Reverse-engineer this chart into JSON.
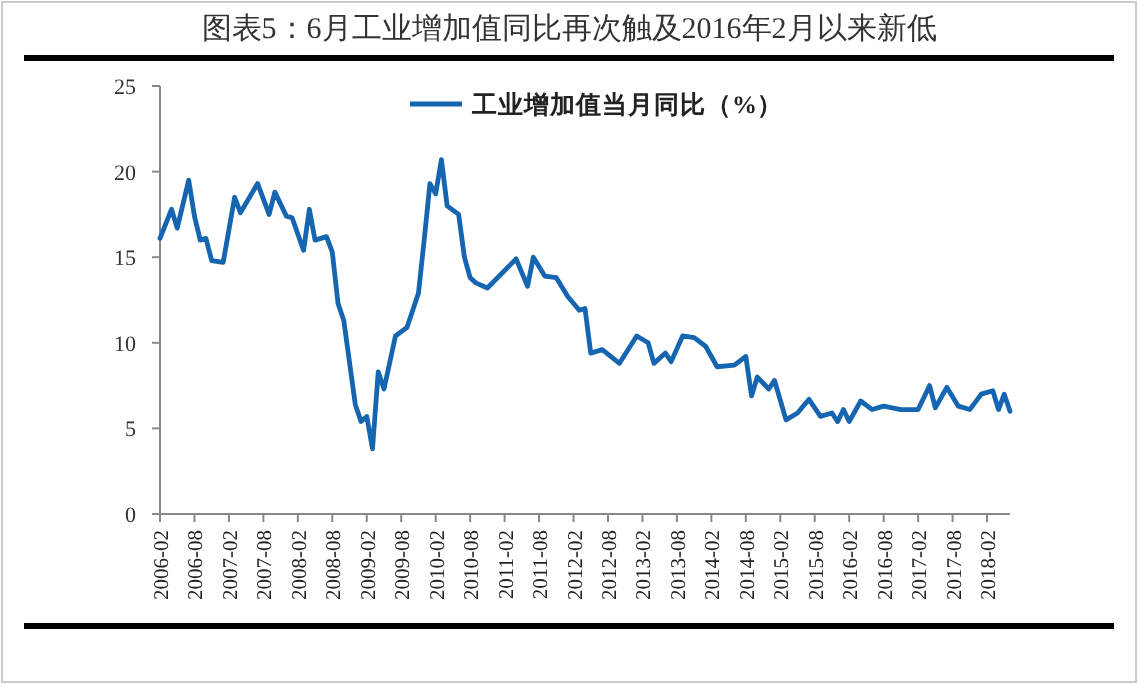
{
  "chart_data": {
    "type": "line",
    "title": "图表5：6月工业增加值同比再次触及2016年2月以来新低",
    "x": [
      "2006-02",
      "2006-04",
      "2006-05",
      "2006-07",
      "2006-08",
      "2006-09",
      "2006-10",
      "2006-11",
      "2007-01",
      "2007-03",
      "2007-04",
      "2007-07",
      "2007-09",
      "2007-10",
      "2007-12",
      "2008-01",
      "2008-03",
      "2008-04",
      "2008-05",
      "2008-07",
      "2008-08",
      "2008-09",
      "2008-10",
      "2008-12",
      "2009-01",
      "2009-02",
      "2009-03",
      "2009-04",
      "2009-05",
      "2009-07",
      "2009-09",
      "2009-11",
      "2009-12",
      "2010-01",
      "2010-02",
      "2010-03",
      "2010-04",
      "2010-06",
      "2010-07",
      "2010-08",
      "2010-09",
      "2010-11",
      "2011-04",
      "2011-06",
      "2011-07",
      "2011-09",
      "2011-11",
      "2012-01",
      "2012-03",
      "2012-04",
      "2012-05",
      "2012-07",
      "2012-10",
      "2013-01",
      "2013-03",
      "2013-04",
      "2013-06",
      "2013-07",
      "2013-09",
      "2013-11",
      "2014-01",
      "2014-03",
      "2014-06",
      "2014-08",
      "2014-09",
      "2014-10",
      "2014-12",
      "2015-01",
      "2015-03",
      "2015-05",
      "2015-07",
      "2015-09",
      "2015-11",
      "2015-12",
      "2016-01",
      "2016-02",
      "2016-04",
      "2016-06",
      "2016-08",
      "2016-11",
      "2017-02",
      "2017-04",
      "2017-05",
      "2017-07",
      "2017-09",
      "2017-11",
      "2018-01",
      "2018-03",
      "2018-04",
      "2018-05",
      "2018-06"
    ],
    "series": [
      {
        "name": "工业增加值当月同比（%）",
        "color": "#1565b0",
        "values": [
          16.1,
          17.8,
          16.7,
          19.5,
          17.4,
          16.0,
          16.1,
          14.8,
          14.7,
          18.5,
          17.6,
          19.3,
          17.5,
          18.8,
          17.4,
          17.3,
          15.4,
          17.8,
          16.0,
          16.2,
          15.3,
          12.3,
          11.3,
          6.4,
          5.4,
          5.7,
          3.8,
          8.3,
          7.3,
          10.4,
          10.9,
          12.9,
          16.0,
          19.3,
          18.7,
          20.7,
          18.0,
          17.5,
          15.0,
          13.8,
          13.5,
          13.2,
          14.9,
          13.3,
          15.0,
          13.9,
          13.8,
          12.7,
          11.9,
          12.0,
          9.4,
          9.6,
          8.8,
          10.4,
          10.0,
          8.8,
          9.4,
          8.9,
          10.4,
          10.3,
          9.8,
          8.6,
          8.7,
          9.2,
          6.9,
          8.0,
          7.3,
          7.8,
          5.5,
          5.9,
          6.7,
          5.7,
          5.9,
          5.4,
          6.1,
          5.4,
          6.6,
          6.1,
          6.3,
          6.1,
          6.1,
          7.5,
          6.2,
          7.4,
          6.3,
          6.1,
          7.0,
          7.2,
          6.1,
          7.0,
          6.0
        ]
      }
    ],
    "xlim": [
      "2006-02",
      "2018-06"
    ],
    "xticks": [
      "2006-02",
      "2006-08",
      "2007-02",
      "2007-08",
      "2008-02",
      "2008-08",
      "2009-02",
      "2009-08",
      "2010-02",
      "2010-08",
      "2011-02",
      "2011-08",
      "2012-02",
      "2012-08",
      "2013-02",
      "2013-08",
      "2014-02",
      "2014-08",
      "2015-02",
      "2015-08",
      "2016-02",
      "2016-08",
      "2017-02",
      "2017-08",
      "2018-02"
    ],
    "ylim": [
      0,
      25
    ],
    "yticks": [
      0,
      5,
      10,
      15,
      20,
      25
    ],
    "legend": "top"
  }
}
